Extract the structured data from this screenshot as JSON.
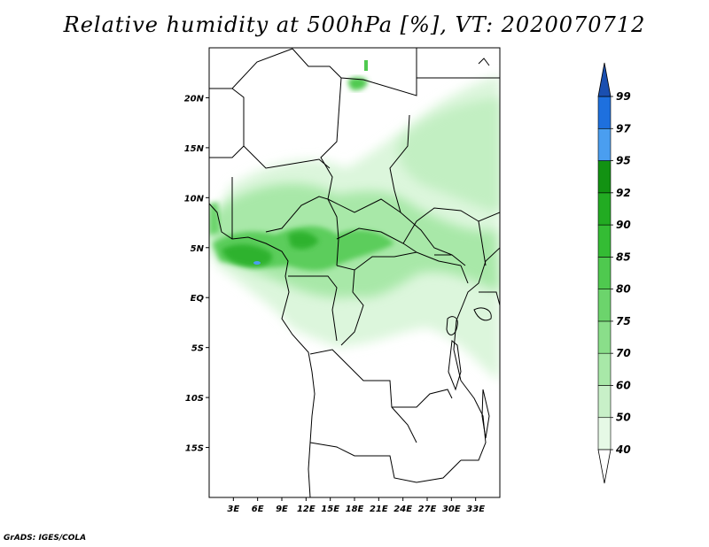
{
  "title": "Relative humidity at 500hPa [%], VT: 2020070712",
  "credit": "GrADS: IGES/COLA",
  "map": {
    "lon_range": [
      0,
      36
    ],
    "lat_range": [
      -20,
      25
    ],
    "lon_ticks": [
      {
        "value": 3,
        "label": "3E"
      },
      {
        "value": 6,
        "label": "6E"
      },
      {
        "value": 9,
        "label": "9E"
      },
      {
        "value": 12,
        "label": "12E"
      },
      {
        "value": 15,
        "label": "15E"
      },
      {
        "value": 18,
        "label": "18E"
      },
      {
        "value": 21,
        "label": "21E"
      },
      {
        "value": 24,
        "label": "24E"
      },
      {
        "value": 27,
        "label": "27E"
      },
      {
        "value": 30,
        "label": "30E"
      },
      {
        "value": 33,
        "label": "33E"
      }
    ],
    "lat_ticks": [
      {
        "value": 20,
        "label": "20N"
      },
      {
        "value": 15,
        "label": "15N"
      },
      {
        "value": 10,
        "label": "10N"
      },
      {
        "value": 5,
        "label": "5N"
      },
      {
        "value": 0,
        "label": "EQ"
      },
      {
        "value": -5,
        "label": "5S"
      },
      {
        "value": -10,
        "label": "10S"
      },
      {
        "value": -15,
        "label": "15S"
      }
    ]
  },
  "colorbar": {
    "labels": [
      "40",
      "50",
      "60",
      "70",
      "75",
      "80",
      "85",
      "90",
      "92",
      "95",
      "97",
      "99"
    ],
    "colors": [
      "#e6f9e6",
      "#c8f0c8",
      "#a8e8a8",
      "#8ade8a",
      "#6cd46c",
      "#4fc94f",
      "#34bc34",
      "#22ab22",
      "#129212",
      "#4a9ef0",
      "#1e70de",
      "#1a58c2"
    ],
    "top_arrow_color": "#1a4fb0",
    "bottom_arrow_color": "#ffffff"
  }
}
